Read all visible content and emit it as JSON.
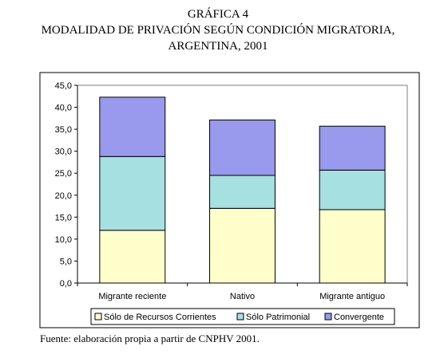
{
  "header": {
    "label": "GRÁFICA 4",
    "title_line1": "MODALIDAD DE PRIVACIÓN SEGÚN CONDICIÓN MIGRATORIA,",
    "title_line2": "ARGENTINA, 2001"
  },
  "source": "Fuente: elaboración propia a partir de CNPHV 2001.",
  "chart_data": {
    "type": "bar",
    "stacked": true,
    "title": "MODALIDAD DE PRIVACIÓN SEGÚN CONDICIÓN MIGRATORIA, ARGENTINA, 2001",
    "categories": [
      "Migrante reciente",
      "Nativo",
      "Migrante antiguo"
    ],
    "series": [
      {
        "name": "Sólo de Recursos Corrientes",
        "color": "#ffffcc",
        "values": [
          12.0,
          17.0,
          16.7
        ]
      },
      {
        "name": "Sólo Patrimonial",
        "color": "#a6e0e0",
        "values": [
          16.8,
          7.5,
          9.0
        ]
      },
      {
        "name": "Convergente",
        "color": "#9999ee",
        "values": [
          13.5,
          12.6,
          10.0
        ]
      }
    ],
    "ylim": [
      0,
      45
    ],
    "yticks": [
      "0,0",
      "5,0",
      "10,0",
      "15,0",
      "20,0",
      "25,0",
      "30,0",
      "35,0",
      "40,0",
      "45,0"
    ],
    "ytick_values": [
      0,
      5,
      10,
      15,
      20,
      25,
      30,
      35,
      40,
      45
    ],
    "grid": false,
    "legend_position": "bottom"
  }
}
